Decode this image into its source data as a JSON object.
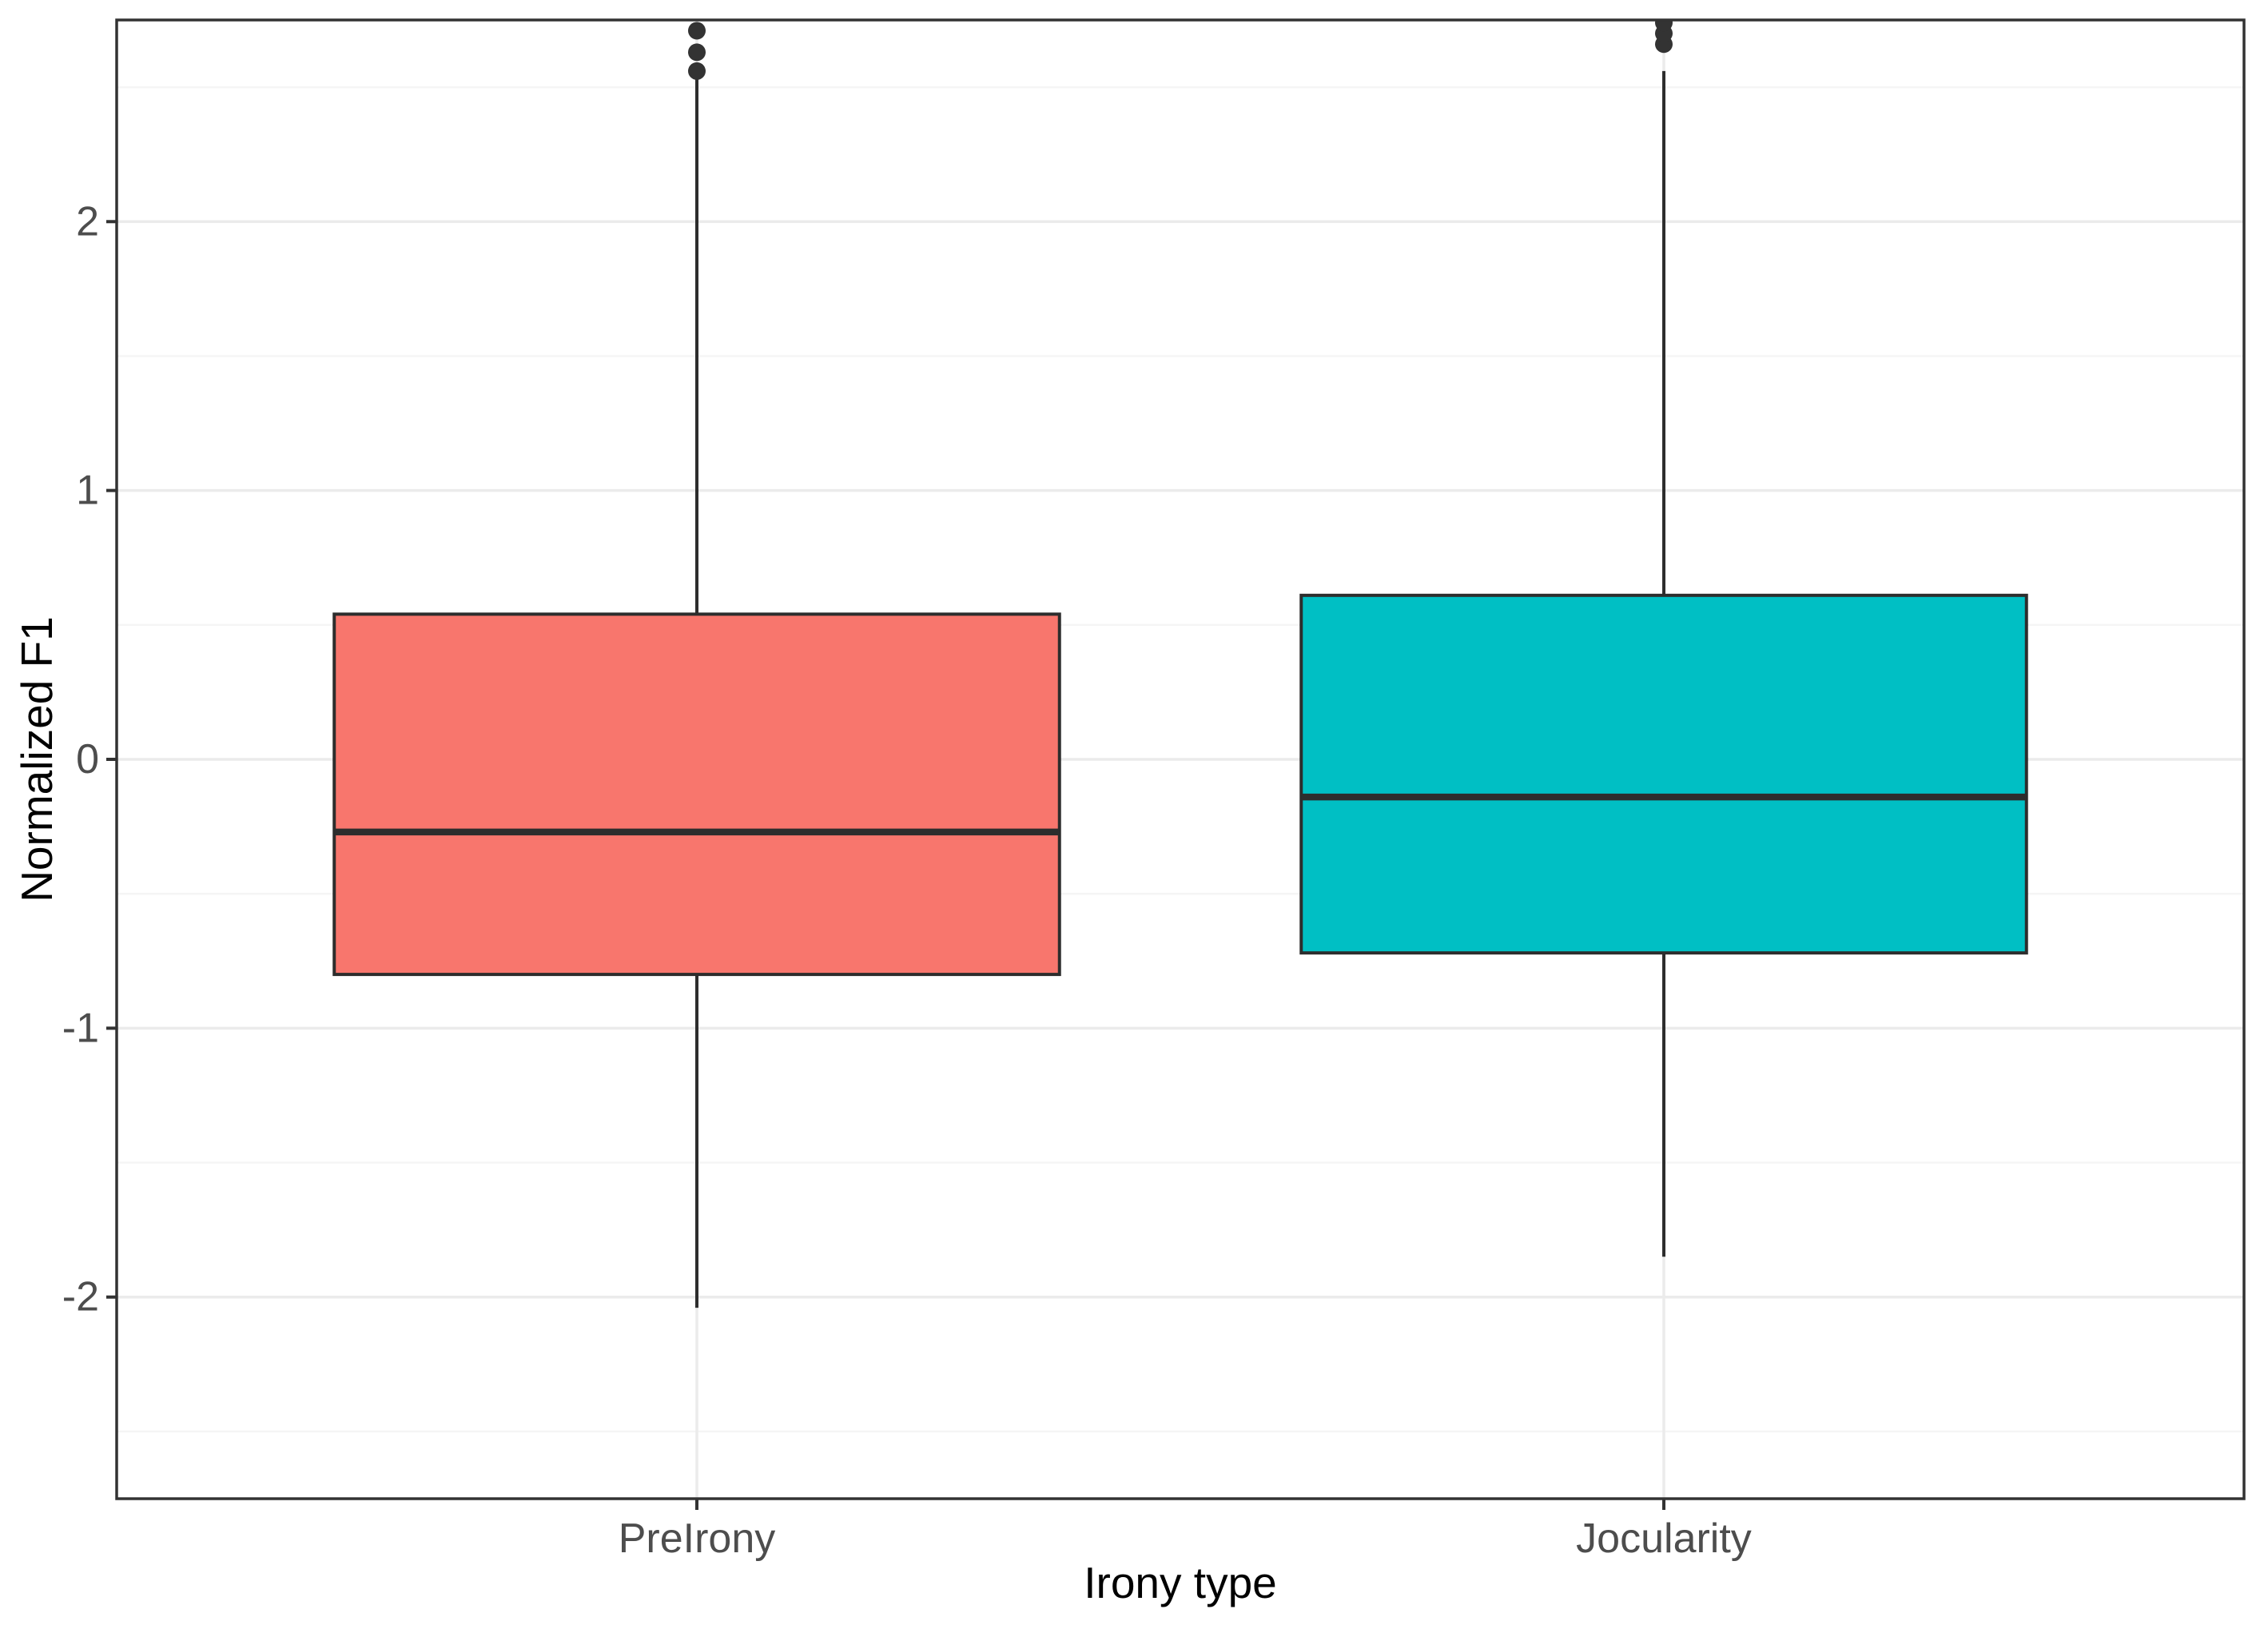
{
  "chart_data": {
    "type": "boxplot",
    "title": "",
    "xlabel": "Irony type",
    "ylabel": "Normalized F1",
    "categories": [
      "PreIrony",
      "Jocularity"
    ],
    "y_ticks": [
      2,
      1,
      0,
      -1,
      -2
    ],
    "y_minor_ticks": [
      2.5,
      1.5,
      0.5,
      -0.5,
      -1.5,
      -2.5
    ],
    "ylim": [
      -2.75,
      2.75
    ],
    "grid": "major horizontal + minor horizontal + vertical at categories",
    "legend": "none",
    "series": [
      {
        "name": "PreIrony",
        "fill": "#F8766D",
        "whisker_low": -2.04,
        "q1": -0.8,
        "median": -0.27,
        "q3": 0.54,
        "whisker_high": 2.53,
        "outliers": [
          2.56,
          2.63,
          2.71
        ]
      },
      {
        "name": "Jocularity",
        "fill": "#00BFC4",
        "whisker_low": -1.85,
        "q1": -0.72,
        "median": -0.14,
        "q3": 0.61,
        "whisker_high": 2.56,
        "outliers": [
          2.66,
          2.7,
          2.74
        ]
      }
    ]
  },
  "style": {
    "background": "#ffffff",
    "panel_border": "#333333",
    "grid_major": "#ebebeb",
    "grid_minor": "#f5f5f5",
    "box_outline": "#2d2d2d",
    "median_color": "#2d2d2d",
    "whisker_color": "#2d2d2d",
    "outlier_color": "#333333",
    "tick_color": "#333333",
    "tick_label_color": "#4d4d4d",
    "axis_title_color": "#000000"
  }
}
